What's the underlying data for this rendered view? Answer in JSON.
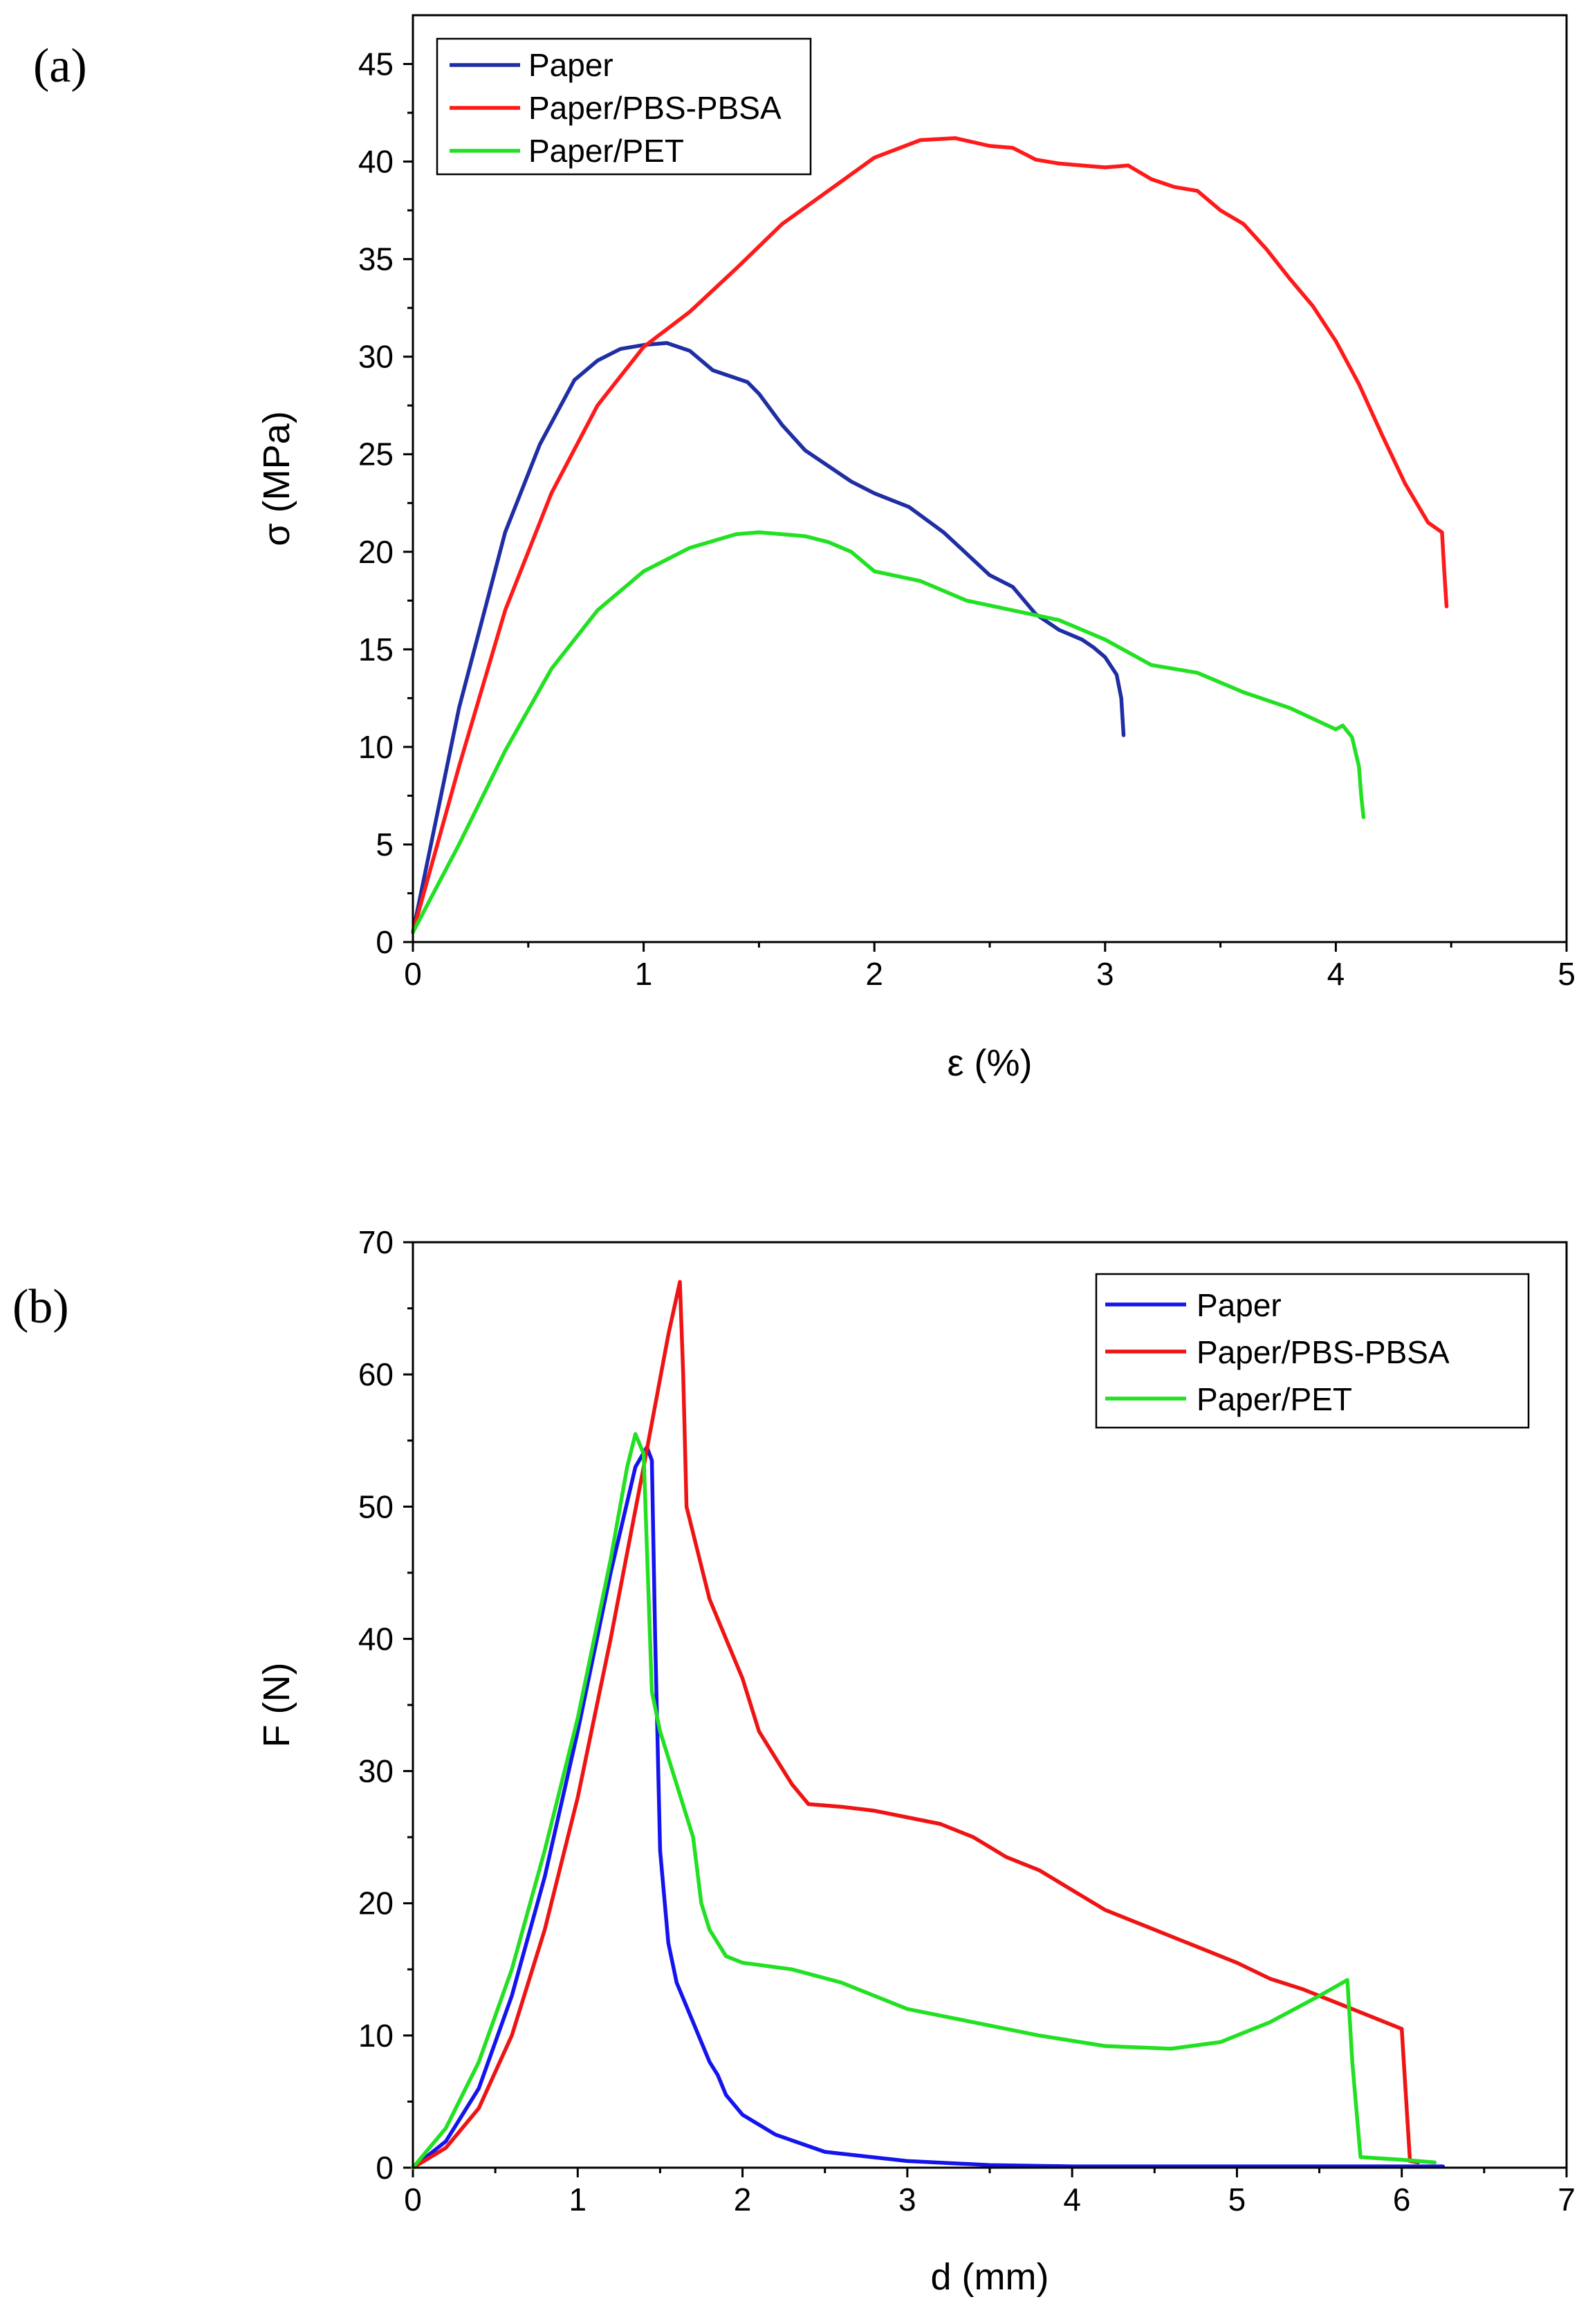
{
  "chart_data": [
    {
      "type": "line",
      "panel_label": "(a)",
      "xlabel": "ε (%)",
      "ylabel": "σ (MPa)",
      "xlim": [
        0,
        5
      ],
      "ylim": [
        0,
        47.5
      ],
      "xticks": [
        0,
        1,
        2,
        3,
        4,
        5
      ],
      "yticks": [
        0,
        5,
        10,
        15,
        20,
        25,
        30,
        35,
        40,
        45
      ],
      "legend_position": "top-left",
      "series": [
        {
          "name": "Paper",
          "color": "#1f2ea3",
          "x": [
            0,
            0.2,
            0.4,
            0.55,
            0.7,
            0.8,
            0.9,
            1.0,
            1.1,
            1.2,
            1.3,
            1.45,
            1.5,
            1.6,
            1.7,
            1.8,
            1.9,
            2.0,
            2.15,
            2.3,
            2.5,
            2.6,
            2.7,
            2.8,
            2.9,
            2.95,
            3.0,
            3.05,
            3.07,
            3.08
          ],
          "y": [
            0.5,
            12,
            21,
            25.5,
            28.8,
            29.8,
            30.4,
            30.6,
            30.7,
            30.3,
            29.3,
            28.7,
            28.1,
            26.5,
            25.2,
            24.4,
            23.6,
            23,
            22.3,
            21,
            18.8,
            18.2,
            16.8,
            16,
            15.5,
            15.1,
            14.6,
            13.7,
            12.5,
            10.6
          ]
        },
        {
          "name": "Paper/PBS-PBSA",
          "color": "#ff1a1a",
          "x": [
            0,
            0.2,
            0.4,
            0.6,
            0.8,
            1.0,
            1.2,
            1.4,
            1.6,
            1.8,
            2.0,
            2.2,
            2.35,
            2.5,
            2.6,
            2.7,
            2.8,
            2.9,
            3.0,
            3.1,
            3.2,
            3.3,
            3.4,
            3.5,
            3.6,
            3.7,
            3.8,
            3.9,
            4.0,
            4.1,
            4.2,
            4.3,
            4.4,
            4.46,
            4.47,
            4.48
          ],
          "y": [
            0.5,
            9,
            17,
            23,
            27.5,
            30.5,
            32.3,
            34.5,
            36.8,
            38.5,
            40.2,
            41.1,
            41.2,
            40.8,
            40.7,
            40.1,
            39.9,
            39.8,
            39.7,
            39.8,
            39.1,
            38.7,
            38.5,
            37.5,
            36.8,
            35.5,
            34,
            32.6,
            30.8,
            28.6,
            26,
            23.5,
            21.5,
            21,
            19,
            17.2
          ]
        },
        {
          "name": "Paper/PET",
          "color": "#22e022",
          "x": [
            0,
            0.2,
            0.4,
            0.6,
            0.8,
            1.0,
            1.2,
            1.4,
            1.5,
            1.6,
            1.7,
            1.8,
            1.9,
            2.0,
            2.2,
            2.4,
            2.6,
            2.8,
            3.0,
            3.2,
            3.4,
            3.6,
            3.8,
            4.0,
            4.03,
            4.07,
            4.1,
            4.11,
            4.12
          ],
          "y": [
            0.5,
            5,
            9.8,
            14,
            17,
            19,
            20.2,
            20.9,
            21,
            20.9,
            20.8,
            20.5,
            20,
            19,
            18.5,
            17.5,
            17,
            16.5,
            15.5,
            14.2,
            13.8,
            12.8,
            12,
            10.9,
            11.1,
            10.5,
            9,
            7.5,
            6.4
          ]
        }
      ]
    },
    {
      "type": "line",
      "panel_label": "(b)",
      "xlabel": "d (mm)",
      "ylabel": "F (N)",
      "xlim": [
        0,
        7
      ],
      "ylim": [
        0,
        70
      ],
      "xticks": [
        0,
        1,
        2,
        3,
        4,
        5,
        6,
        7
      ],
      "yticks": [
        0,
        10,
        20,
        30,
        40,
        50,
        60,
        70
      ],
      "legend_position": "top-right",
      "series": [
        {
          "name": "Paper",
          "color": "#1414ee",
          "x": [
            0,
            0.2,
            0.4,
            0.6,
            0.8,
            1.0,
            1.2,
            1.35,
            1.42,
            1.45,
            1.47,
            1.5,
            1.55,
            1.6,
            1.7,
            1.8,
            1.85,
            1.9,
            2.0,
            2.2,
            2.5,
            3.0,
            3.5,
            4.0,
            5.0,
            6.0,
            6.25
          ],
          "y": [
            0,
            2,
            6,
            13,
            22,
            33,
            45,
            53,
            54.5,
            53.5,
            40,
            24,
            17,
            14,
            11,
            8,
            7,
            5.5,
            4,
            2.5,
            1.2,
            0.5,
            0.2,
            0.1,
            0.1,
            0.1,
            0.1
          ]
        },
        {
          "name": "Paper/PBS-PBSA",
          "color": "#ee1414",
          "x": [
            0,
            0.2,
            0.4,
            0.6,
            0.8,
            1.0,
            1.2,
            1.4,
            1.55,
            1.62,
            1.64,
            1.66,
            1.7,
            1.8,
            1.9,
            2.0,
            2.1,
            2.15,
            2.2,
            2.3,
            2.4,
            2.6,
            2.8,
            3.0,
            3.2,
            3.4,
            3.6,
            3.8,
            4.0,
            4.2,
            4.4,
            4.6,
            4.8,
            5.0,
            5.2,
            5.4,
            5.6,
            5.8,
            6.0,
            6.05,
            6.1
          ],
          "y": [
            0,
            1.5,
            4.5,
            10,
            18,
            28,
            40,
            53,
            63,
            67,
            60,
            50,
            48,
            43,
            40,
            37,
            33,
            32,
            31,
            29,
            27.5,
            27.3,
            27,
            26.5,
            26,
            25,
            23.5,
            22.5,
            21,
            19.5,
            18.5,
            17.5,
            16.5,
            15.5,
            14.3,
            13.5,
            12.5,
            11.5,
            10.5,
            0.5,
            0.4
          ]
        },
        {
          "name": "Paper/PET",
          "color": "#22e022",
          "x": [
            0,
            0.2,
            0.4,
            0.6,
            0.8,
            1.0,
            1.2,
            1.3,
            1.35,
            1.4,
            1.45,
            1.5,
            1.6,
            1.7,
            1.75,
            1.8,
            1.9,
            2.0,
            2.3,
            2.6,
            3.0,
            3.4,
            3.8,
            4.2,
            4.6,
            4.9,
            5.2,
            5.5,
            5.67,
            5.7,
            5.75,
            6.0,
            6.2
          ],
          "y": [
            0,
            3,
            8,
            15,
            24,
            34,
            46,
            53,
            55.5,
            54,
            36,
            33,
            29,
            25,
            20,
            18,
            16,
            15.5,
            15,
            14,
            12,
            11,
            10,
            9.2,
            9,
            9.5,
            11,
            13,
            14.2,
            8,
            0.8,
            0.6,
            0.4
          ]
        }
      ]
    }
  ]
}
